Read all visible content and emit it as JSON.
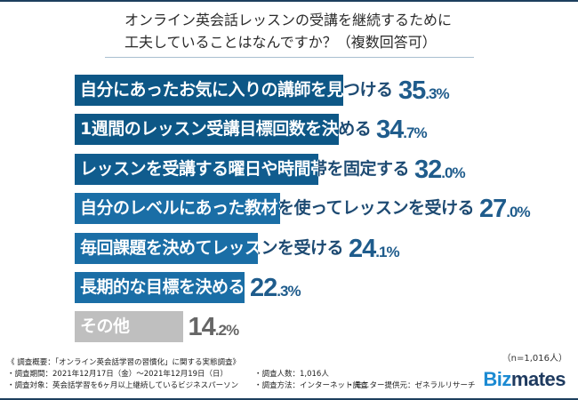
{
  "title": {
    "line1": "オンライン英会話レッスンの受講を継続するために",
    "line2": "工夫していることはなんですか？（複数回答可）"
  },
  "chart_data": {
    "type": "bar",
    "orientation": "horizontal",
    "title": "オンライン英会話レッスンの受講を継続するために工夫していることはなんですか？（複数回答可）",
    "unit": "%",
    "categories": [
      "自分にあったお気に入りの講師を見つける",
      "1週間のレッスン受講目標回数を決める",
      "レッスンを受講する曜日や時間帯を固定する",
      "自分のレベルにあった教材を使ってレッスンを受ける",
      "毎回課題を決めてレッスンを受ける",
      "長期的な目標を決める",
      "その他"
    ],
    "values": [
      35.3,
      34.7,
      32.0,
      27.0,
      24.1,
      22.3,
      14.2
    ],
    "value_labels": [
      {
        "int": "35",
        "dec": ".3%"
      },
      {
        "int": "34",
        "dec": ".7%"
      },
      {
        "int": "32",
        "dec": ".0%"
      },
      {
        "int": "27",
        "dec": ".0%"
      },
      {
        "int": "24",
        "dec": ".1%"
      },
      {
        "int": "22",
        "dec": ".3%"
      },
      {
        "int": "14",
        "dec": ".2%"
      }
    ],
    "bar_colors": [
      "#0d5786",
      "#0d5786",
      "#105c8e",
      "#1a6ea6",
      "#1a6ea6",
      "#1a6ea6",
      "#bfbfbf"
    ],
    "label_outside_colors": [
      "#1d4a72",
      "#1d4a72",
      "#1d4a72",
      "#1d4a72",
      "#1d4a72",
      "#1d4a72",
      "#555555"
    ],
    "value_colors": [
      "#1f5c8c",
      "#1f5c8c",
      "#1f5c8c",
      "#1f5c8c",
      "#1f5c8c",
      "#1f5c8c",
      "#666666"
    ],
    "grid": false,
    "legend": "none"
  },
  "sample": "（n=1,016人）",
  "notes": {
    "heading": "《 調査概要：「オンライン英会話学習の習慣化」に関する実態調査》",
    "period": "・調査期間：2021年12月17日（金）～2021年12月19日（日）",
    "target": "・調査対象：英会話学習を6ヶ月以上継続しているビジネスパーソン",
    "count": "・調査人数：1,016人",
    "method": "・調査方法：インターネット調査",
    "monitor": "・モニター提供元：ゼネラルリサーチ"
  },
  "logo": {
    "part1": "Biz",
    "part2": "mates"
  }
}
